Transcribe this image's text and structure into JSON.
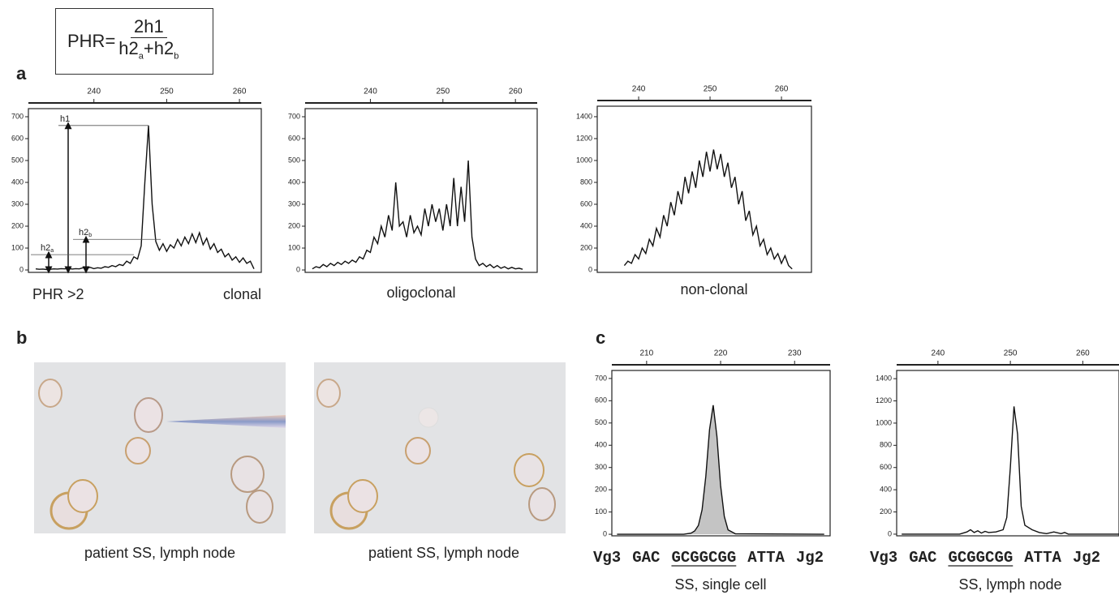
{
  "formula": {
    "lhs": "PHR=",
    "numerator": "2h1",
    "denominator": [
      {
        "text": "h2",
        "sub": "a"
      },
      {
        "text": "+h2",
        "sub": "b"
      }
    ]
  },
  "panel_labels": [
    "a",
    "b",
    "c"
  ],
  "photos": [
    {
      "caption": "patient SS, lymph node"
    },
    {
      "caption": "patient SS, lymph node"
    }
  ],
  "chart_data": [
    {
      "type": "line",
      "color": "#111",
      "x": [
        232,
        232.5,
        233,
        233.5,
        234,
        234.5,
        235,
        235.5,
        236,
        236.5,
        237,
        237.5,
        238,
        238.5,
        239,
        239.5,
        240,
        240.5,
        241,
        241.5,
        242,
        242.5,
        243,
        243.5,
        244,
        244.5,
        245,
        245.5,
        246,
        246.5,
        247,
        247.5,
        248,
        248.5,
        249,
        249.5,
        250,
        250.5,
        251,
        251.5,
        252,
        252.5,
        253,
        253.5,
        254,
        254.5,
        255,
        255.5,
        256,
        256.5,
        257,
        257.5,
        258,
        258.5,
        259,
        259.5,
        260,
        260.5,
        261,
        261.5,
        262
      ],
      "values": [
        5,
        3,
        4,
        2,
        3,
        5,
        4,
        6,
        5,
        8,
        4,
        6,
        5,
        10,
        8,
        12,
        6,
        10,
        8,
        15,
        12,
        20,
        15,
        25,
        20,
        40,
        30,
        60,
        50,
        110,
        400,
        660,
        300,
        130,
        90,
        120,
        85,
        115,
        100,
        140,
        110,
        150,
        120,
        165,
        125,
        170,
        115,
        145,
        95,
        120,
        80,
        95,
        60,
        75,
        45,
        60,
        35,
        55,
        30,
        40,
        5
      ],
      "xlim": [
        231,
        263
      ],
      "xticks": [
        240,
        250,
        260
      ],
      "ylim": [
        -11,
        737
      ],
      "yticks": [
        0,
        100,
        200,
        300,
        400,
        500,
        600,
        700
      ],
      "annotations": [
        {
          "text": "h1",
          "y": 660
        },
        {
          "text": "h2",
          "sub": "a",
          "y": 70
        },
        {
          "text": "h2",
          "sub": "b",
          "y": 140
        }
      ],
      "note": "PHR >2",
      "caption": "clonal"
    },
    {
      "type": "line",
      "color": "#111",
      "x": [
        232,
        232.5,
        233,
        233.5,
        234,
        234.5,
        235,
        235.5,
        236,
        236.5,
        237,
        237.5,
        238,
        238.5,
        239,
        239.5,
        240,
        240.5,
        241,
        241.5,
        242,
        242.5,
        243,
        243.5,
        244,
        244.5,
        245,
        245.5,
        246,
        246.5,
        247,
        247.5,
        248,
        248.5,
        249,
        249.5,
        250,
        250.5,
        251,
        251.5,
        252,
        252.5,
        253,
        253.5,
        254,
        254.5,
        255,
        255.5,
        256,
        256.5,
        257,
        257.5,
        258,
        258.5,
        259,
        259.5,
        260,
        260.5,
        261
      ],
      "values": [
        5,
        15,
        10,
        25,
        15,
        30,
        20,
        35,
        25,
        40,
        30,
        45,
        35,
        60,
        50,
        90,
        80,
        150,
        120,
        200,
        150,
        250,
        180,
        400,
        200,
        220,
        150,
        250,
        170,
        200,
        160,
        280,
        200,
        300,
        220,
        280,
        180,
        300,
        200,
        420,
        200,
        380,
        220,
        500,
        150,
        50,
        20,
        30,
        15,
        25,
        10,
        20,
        8,
        15,
        5,
        12,
        5,
        8,
        3
      ],
      "xlim": [
        231,
        263
      ],
      "xticks": [
        240,
        250,
        260
      ],
      "ylim": [
        -11,
        737
      ],
      "yticks": [
        0,
        100,
        200,
        300,
        400,
        500,
        600,
        700
      ],
      "caption": "oligoclonal"
    },
    {
      "type": "line",
      "color": "#111",
      "x": [
        238,
        238.5,
        239,
        239.5,
        240,
        240.5,
        241,
        241.5,
        242,
        242.5,
        243,
        243.5,
        244,
        244.5,
        245,
        245.5,
        246,
        246.5,
        247,
        247.5,
        248,
        248.5,
        249,
        249.5,
        250,
        250.5,
        251,
        251.5,
        252,
        252.5,
        253,
        253.5,
        254,
        254.5,
        255,
        255.5,
        256,
        256.5,
        257,
        257.5,
        258,
        258.5,
        259,
        259.5,
        260,
        260.5,
        261,
        261.5
      ],
      "values": [
        40,
        80,
        60,
        140,
        100,
        200,
        150,
        280,
        220,
        380,
        300,
        500,
        400,
        620,
        500,
        720,
        600,
        850,
        700,
        900,
        750,
        1000,
        850,
        1080,
        900,
        1100,
        920,
        1060,
        850,
        980,
        750,
        850,
        600,
        720,
        450,
        540,
        320,
        400,
        220,
        280,
        140,
        200,
        100,
        150,
        60,
        130,
        40,
        10
      ],
      "xlim": [
        234.2,
        264.2
      ],
      "xticks": [
        240,
        250,
        260
      ],
      "ylim": [
        -22,
        1496
      ],
      "yticks": [
        0,
        200,
        400,
        600,
        800,
        1000,
        1200,
        1400
      ],
      "caption": "non-clonal"
    },
    {
      "type": "area",
      "color": "#111",
      "fill": "#c4c4c4",
      "x": [
        206,
        215,
        216,
        216.5,
        217,
        217.5,
        218,
        218.5,
        219,
        219.5,
        220,
        220.5,
        221,
        222,
        234
      ],
      "values": [
        0,
        0,
        5,
        15,
        40,
        110,
        260,
        470,
        580,
        440,
        220,
        80,
        20,
        2,
        0
      ],
      "xlim": [
        205.3,
        234.8
      ],
      "xticks": [
        210,
        220,
        230
      ],
      "ylim": [
        -7,
        736
      ],
      "yticks": [
        0,
        100,
        200,
        300,
        400,
        500,
        600,
        700
      ],
      "sequence": [
        {
          "text": "Vg3"
        },
        {
          "text": "GAC"
        },
        {
          "text": "GCGGCGG",
          "underline": true
        },
        {
          "text": "ATTA"
        },
        {
          "text": "Jg2"
        }
      ],
      "caption": "SS, single cell"
    },
    {
      "type": "line",
      "color": "#111",
      "x": [
        235,
        243,
        244,
        244.5,
        245,
        245.5,
        246,
        246.5,
        247,
        248,
        249,
        249.5,
        250,
        250.5,
        251,
        251.5,
        252,
        253,
        254,
        255,
        256,
        257,
        257.5,
        258,
        265
      ],
      "values": [
        0,
        0,
        20,
        40,
        15,
        30,
        10,
        25,
        15,
        20,
        40,
        150,
        600,
        1150,
        900,
        250,
        80,
        40,
        15,
        5,
        20,
        5,
        15,
        0,
        0
      ],
      "xlim": [
        234.3,
        265
      ],
      "xticks": [
        240,
        250,
        260
      ],
      "ylim": [
        -15,
        1474
      ],
      "yticks": [
        0,
        200,
        400,
        600,
        800,
        1000,
        1200,
        1400
      ],
      "sequence": [
        {
          "text": "Vg3"
        },
        {
          "text": "GAC"
        },
        {
          "text": "GCGGCGG",
          "underline": true
        },
        {
          "text": "ATTA"
        },
        {
          "text": "Jg2"
        }
      ],
      "caption": "SS, lymph node"
    }
  ]
}
